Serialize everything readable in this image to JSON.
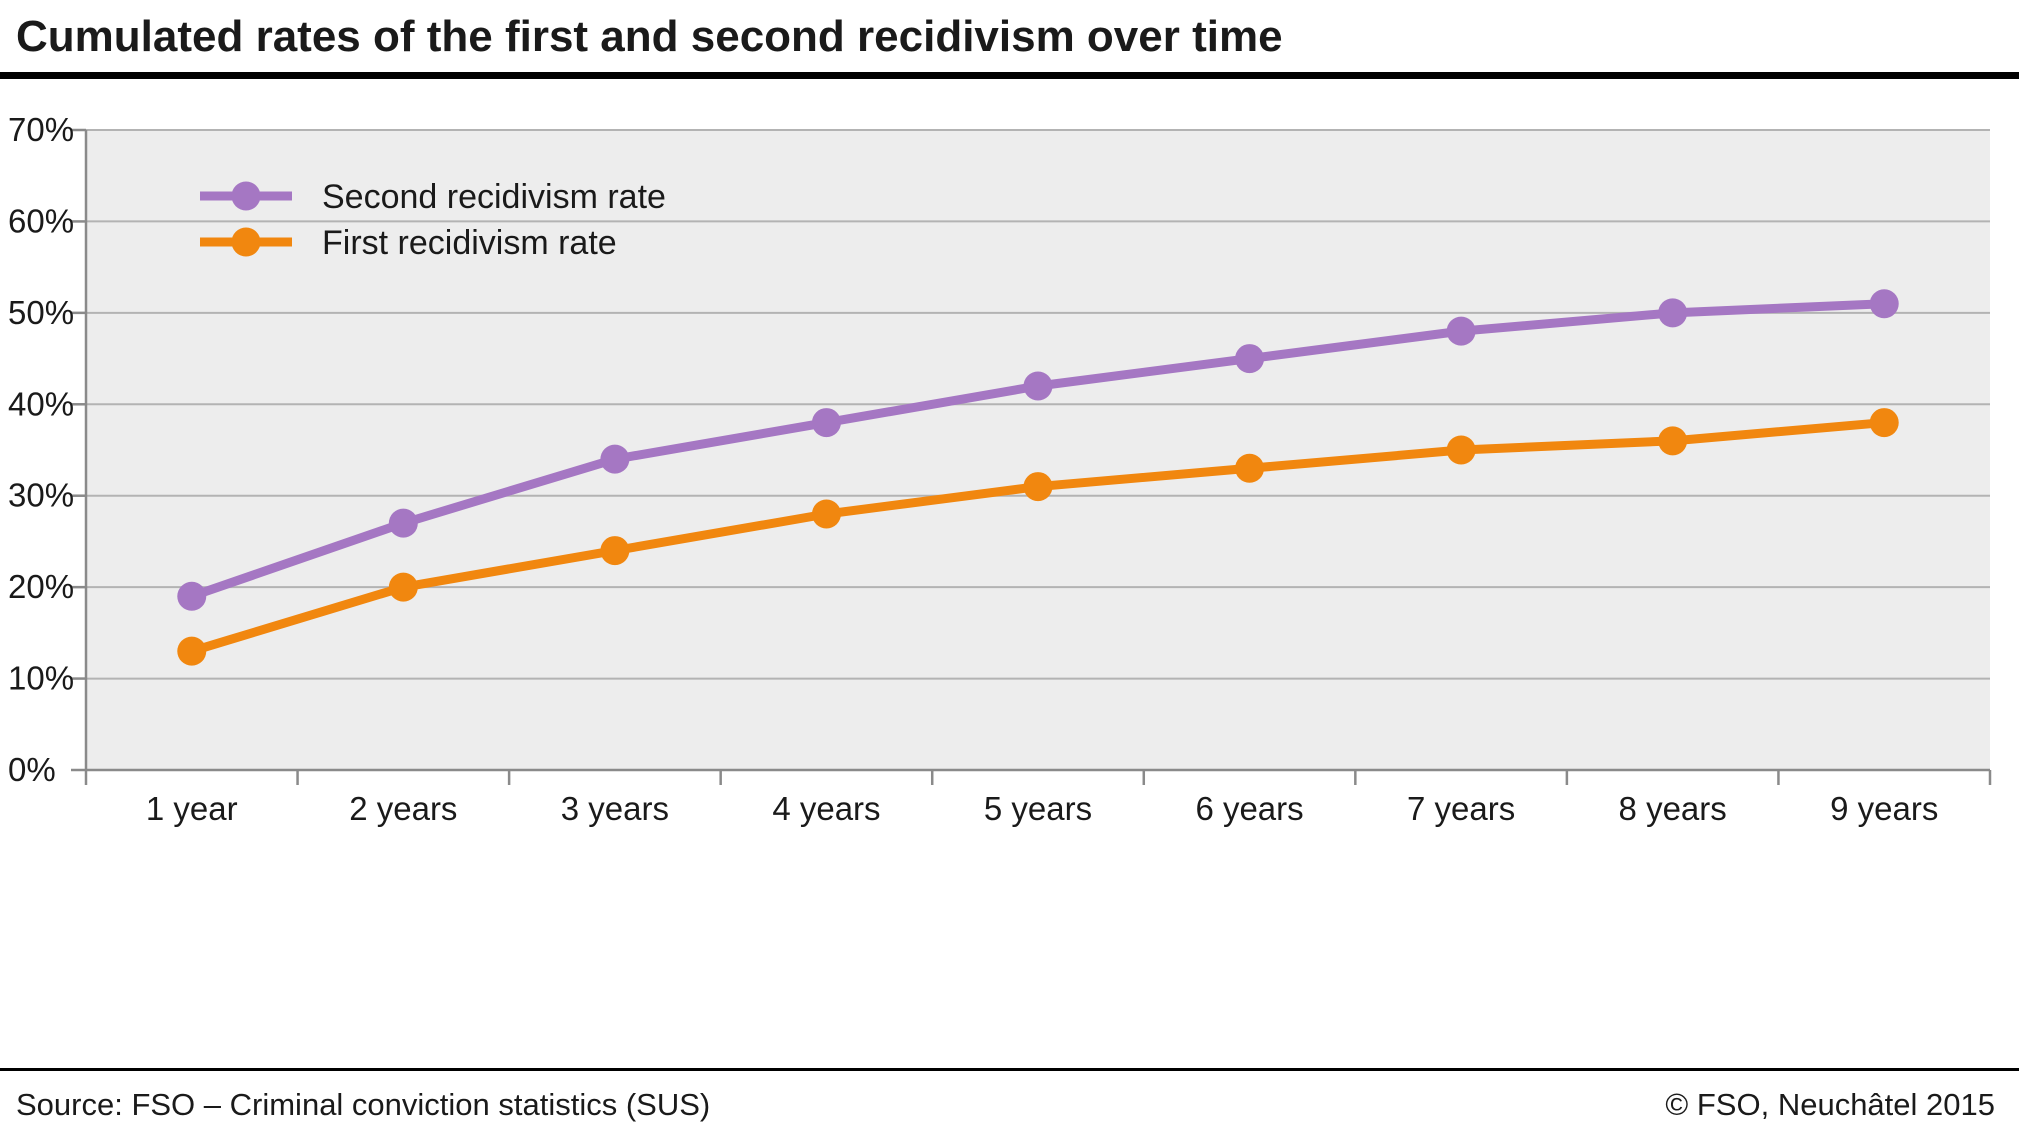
{
  "title": "Cumulated rates of the first and second recidivism over time",
  "footer": {
    "source": "Source: FSO – Criminal conviction statistics (SUS)",
    "copyright": "© FSO, Neuchâtel 2015"
  },
  "colors": {
    "second_recidivism": "#a577c3",
    "first_recidivism": "#f1870f",
    "plot_background": "#ededed",
    "gridline": "#b3b3b3",
    "axis": "#8a8a8a",
    "text": "#1a1a1a",
    "rule": "#000000"
  },
  "chart_data": {
    "type": "line",
    "title": "Cumulated rates of the first and second recidivism over time",
    "categories": [
      "1 year",
      "2 years",
      "3 years",
      "4 years",
      "5 years",
      "6 years",
      "7 years",
      "8 years",
      "9 years"
    ],
    "series": [
      {
        "name": "Second recidivism rate",
        "color": "#a577c3",
        "values": [
          19,
          27,
          34,
          38,
          42,
          45,
          48,
          50,
          51
        ]
      },
      {
        "name": "First recidivism rate",
        "color": "#f1870f",
        "values": [
          13,
          20,
          24,
          28,
          31,
          33,
          35,
          36,
          38
        ]
      }
    ],
    "ylim": [
      0,
      70
    ],
    "ytick_step": 10,
    "ytick_suffix": "%",
    "xlabel": "",
    "ylabel": "",
    "grid": true,
    "legend_position": "top-left-inside",
    "marker": "circle"
  }
}
